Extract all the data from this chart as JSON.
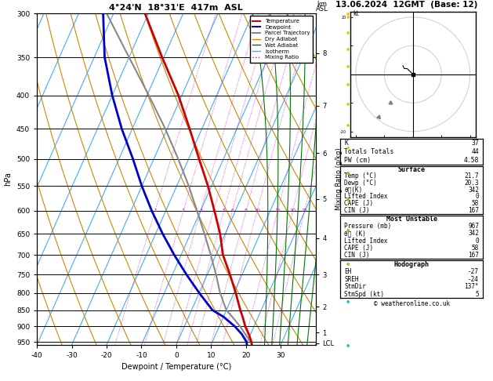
{
  "title_left": "4°24'N  18°31'E  417m  ASL",
  "title_right": "13.06.2024  12GMT  (Base: 12)",
  "xlabel": "Dewpoint / Temperature (°C)",
  "ylabel_left": "hPa",
  "background": "#ffffff",
  "temp_color": "#cc0000",
  "dewp_color": "#0000cc",
  "parcel_color": "#888888",
  "dry_color": "#cc8800",
  "wet_color": "#007700",
  "iso_color": "#44aaff",
  "mix_color": "#cc00cc",
  "xmin": -40,
  "xmax": 40,
  "pmin": 300,
  "pmax": 960,
  "skew": 42,
  "pressure_lines": [
    300,
    350,
    400,
    450,
    500,
    550,
    600,
    650,
    700,
    750,
    800,
    850,
    900,
    950
  ],
  "isotherm_temps": [
    -80,
    -70,
    -60,
    -50,
    -40,
    -30,
    -20,
    -10,
    0,
    10,
    20,
    30,
    40,
    50
  ],
  "dry_thetas": [
    -30,
    -20,
    -10,
    0,
    10,
    20,
    30,
    40,
    50,
    60,
    70,
    80,
    90,
    100,
    110,
    120,
    130
  ],
  "wet_t0s": [
    -20,
    -15,
    -10,
    -5,
    0,
    5,
    10,
    15,
    20,
    25,
    30,
    35
  ],
  "mix_ratios": [
    1,
    2,
    3,
    4,
    5,
    6,
    8,
    10,
    15,
    20,
    25
  ],
  "temp_p": [
    960,
    950,
    925,
    900,
    870,
    850,
    800,
    750,
    700,
    650,
    600,
    550,
    500,
    450,
    400,
    350,
    300
  ],
  "temp_t": [
    21.7,
    21.2,
    19.5,
    17.5,
    15.5,
    14.0,
    10.5,
    6.5,
    2.0,
    -1.5,
    -6.0,
    -11.0,
    -17.0,
    -23.5,
    -31.0,
    -40.5,
    -51.0
  ],
  "dewp_p": [
    960,
    950,
    925,
    900,
    870,
    850,
    800,
    750,
    700,
    650,
    600,
    550,
    500,
    450,
    400,
    350,
    300
  ],
  "dewp_t": [
    20.3,
    19.8,
    17.5,
    14.5,
    10.0,
    6.0,
    0.0,
    -6.0,
    -12.0,
    -18.0,
    -24.0,
    -30.0,
    -36.0,
    -43.0,
    -50.0,
    -57.0,
    -63.0
  ],
  "parcel_p": [
    960,
    950,
    925,
    900,
    870,
    850,
    800,
    750,
    700,
    650,
    600,
    550,
    500,
    450,
    400,
    350,
    300
  ],
  "parcel_t": [
    21.7,
    21.0,
    18.5,
    16.0,
    12.5,
    10.0,
    6.0,
    2.5,
    -1.5,
    -6.0,
    -11.0,
    -16.5,
    -23.0,
    -30.5,
    -39.5,
    -50.0,
    -62.0
  ],
  "km_pressures": [
    920,
    840,
    750,
    660,
    575,
    490,
    415,
    345
  ],
  "km_labels": [
    "1",
    "2",
    "3",
    "4",
    "5",
    "6",
    "7",
    "8"
  ],
  "lcl_pressure": 955,
  "wind_pressures": [
    300,
    350,
    400,
    450,
    500,
    550,
    600,
    650,
    700,
    750,
    800,
    850,
    900,
    950,
    960
  ],
  "wind_colors": [
    "#00cccc",
    "#00cccc",
    "#88cc00",
    "#88cc00",
    "#88cc00",
    "#88cc00",
    "#ddcc00",
    "#ddcc00",
    "#ddcc00",
    "#ddcc00",
    "#ddcc00",
    "#ddcc00",
    "#ddcc00",
    "#ddcc00",
    "#ddcc00"
  ],
  "copyright": "© weatheronline.co.uk",
  "stats_k": "37",
  "stats_tt": "44",
  "stats_pw": "4.58",
  "surf_temp": "21.7",
  "surf_dewp": "20.3",
  "surf_the": "342",
  "surf_li": "0",
  "surf_cape": "58",
  "surf_cin": "167",
  "mu_pres": "967",
  "mu_the": "342",
  "mu_li": "0",
  "mu_cape": "58",
  "mu_cin": "167",
  "hodo_eh": "-27",
  "hodo_sreh": "-24",
  "hodo_stmdir": "137°",
  "hodo_stmspd": "5"
}
